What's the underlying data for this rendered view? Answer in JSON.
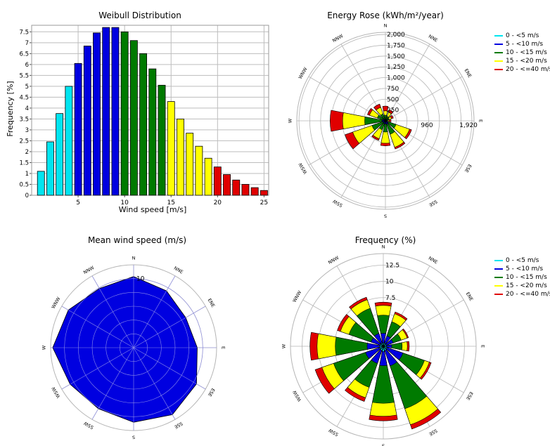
{
  "charts": {
    "weibull": {
      "title": "Weibull Distribution",
      "ylabel": "Frequency [%]",
      "xlabel": "Wind speed [m/s]"
    },
    "energy_rose": {
      "title": "Energy Rose (kWh/m²/year)"
    },
    "mean_speed": {
      "title": "Mean wind speed (m/s)"
    },
    "frequency_rose": {
      "title": "Frequency (%)"
    }
  },
  "legend": {
    "items": [
      {
        "label": "0 - <5 m/s",
        "color": "#00e5f0"
      },
      {
        "label": "5 - <10 m/s",
        "color": "#0000e0"
      },
      {
        "label": "10 - <15 m/s",
        "color": "#007a00"
      },
      {
        "label": "15 - <20 m/s",
        "color": "#ffff00"
      },
      {
        "label": "20 - <=40 m/s",
        "color": "#e00000"
      }
    ]
  },
  "directions": [
    "N",
    "NNE",
    "ENE",
    "E",
    "ESE",
    "SSE",
    "S",
    "SSW",
    "WSW",
    "W",
    "WNW",
    "NNW"
  ],
  "chart_data": [
    {
      "type": "bar",
      "title": "Weibull Distribution",
      "xlabel": "Wind speed [m/s]",
      "ylabel": "Frequency [%]",
      "x": [
        1,
        2,
        3,
        4,
        5,
        6,
        7,
        8,
        9,
        10,
        11,
        12,
        13,
        14,
        15,
        16,
        17,
        18,
        19,
        20,
        21,
        22,
        23,
        24,
        25
      ],
      "values": [
        1.1,
        2.45,
        3.75,
        5.0,
        6.05,
        6.85,
        7.45,
        7.7,
        7.7,
        7.5,
        7.1,
        6.5,
        5.8,
        5.05,
        4.3,
        3.5,
        2.85,
        2.25,
        1.7,
        1.3,
        0.95,
        0.7,
        0.5,
        0.35,
        0.22
      ],
      "colors": [
        "#00e5f0",
        "#00e5f0",
        "#00e5f0",
        "#00e5f0",
        "#0000e0",
        "#0000e0",
        "#0000e0",
        "#0000e0",
        "#0000e0",
        "#007a00",
        "#007a00",
        "#007a00",
        "#007a00",
        "#007a00",
        "#ffff00",
        "#ffff00",
        "#ffff00",
        "#ffff00",
        "#ffff00",
        "#e00000",
        "#e00000",
        "#e00000",
        "#e00000",
        "#e00000",
        "#e00000"
      ],
      "xticks": [
        5,
        10,
        15,
        20,
        25
      ],
      "yticks": [
        0,
        0.5,
        1,
        1.5,
        2,
        2.5,
        3,
        3.5,
        4,
        4.5,
        5,
        5.5,
        6,
        6.5,
        7,
        7.5
      ],
      "ytick_labels": [
        "0",
        "0.5",
        "1",
        "1.5",
        "2",
        "2.5",
        "3",
        "3.5",
        "4",
        "4.5",
        "5",
        "5.5",
        "6",
        "6.5",
        "7",
        "7.5"
      ],
      "xlim": [
        0,
        25.5
      ],
      "ylim": [
        0,
        7.8
      ],
      "grid": true
    },
    {
      "type": "radar",
      "title": "Energy Rose (kWh/m²/year)",
      "rmax": 2050,
      "ring_step": 250,
      "radial_labels": [
        "250",
        "500",
        "750",
        "1,000",
        "1,250",
        "1,500",
        "1,750",
        "2,000"
      ],
      "axis_labels": [
        "960",
        "1,920"
      ],
      "axis_label_values": [
        960,
        1920
      ],
      "stacked_values": [
        [
          10,
          25,
          130,
          230,
          340
        ],
        [
          10,
          40,
          110,
          210,
          270
        ],
        [
          10,
          40,
          90,
          150,
          195
        ],
        [
          10,
          20,
          50,
          90,
          130
        ],
        [
          20,
          70,
          260,
          590,
          640
        ],
        [
          20,
          90,
          330,
          650,
          690
        ],
        [
          10,
          70,
          260,
          520,
          580
        ],
        [
          10,
          70,
          220,
          440,
          480
        ],
        [
          10,
          60,
          330,
          800,
          990
        ],
        [
          10,
          80,
          480,
          990,
          1280
        ],
        [
          10,
          60,
          200,
          390,
          440
        ],
        [
          10,
          40,
          170,
          330,
          410
        ]
      ]
    },
    {
      "type": "radar",
      "title": "Mean wind speed (m/s)",
      "rmax": 12,
      "ring_step": 2,
      "radial_labels": [
        "10"
      ],
      "values": [
        10.3,
        9.5,
        8.7,
        9.2,
        10.5,
        11.2,
        10.8,
        10.2,
        10.6,
        11.7,
        10.9,
        9.9
      ],
      "color": "#0000e0"
    },
    {
      "type": "radar",
      "title": "Frequency (%)",
      "rmax": 14.3,
      "ring_step": 2.5,
      "radial_labels": [
        "7.5",
        "10",
        "12.5"
      ],
      "stacked_values": [
        [
          0.5,
          2.0,
          4.8,
          6.3,
          6.8
        ],
        [
          0.5,
          1.7,
          4.0,
          5.3,
          5.6
        ],
        [
          0.5,
          1.6,
          2.9,
          3.9,
          4.1
        ],
        [
          0.5,
          1.3,
          2.9,
          3.7,
          4.0
        ],
        [
          0.6,
          3.2,
          6.7,
          7.5,
          7.8
        ],
        [
          0.7,
          3.2,
          10.2,
          12.8,
          13.5
        ],
        [
          0.8,
          3.0,
          8.8,
          10.8,
          11.5
        ],
        [
          0.7,
          2.8,
          6.7,
          8.4,
          9.0
        ],
        [
          0.6,
          2.9,
          8.1,
          10.0,
          11.1
        ],
        [
          0.6,
          2.5,
          7.4,
          10.2,
          11.3
        ],
        [
          0.5,
          2.0,
          5.6,
          7.0,
          7.5
        ],
        [
          0.5,
          2.1,
          6.2,
          7.6,
          8.0
        ]
      ]
    }
  ]
}
